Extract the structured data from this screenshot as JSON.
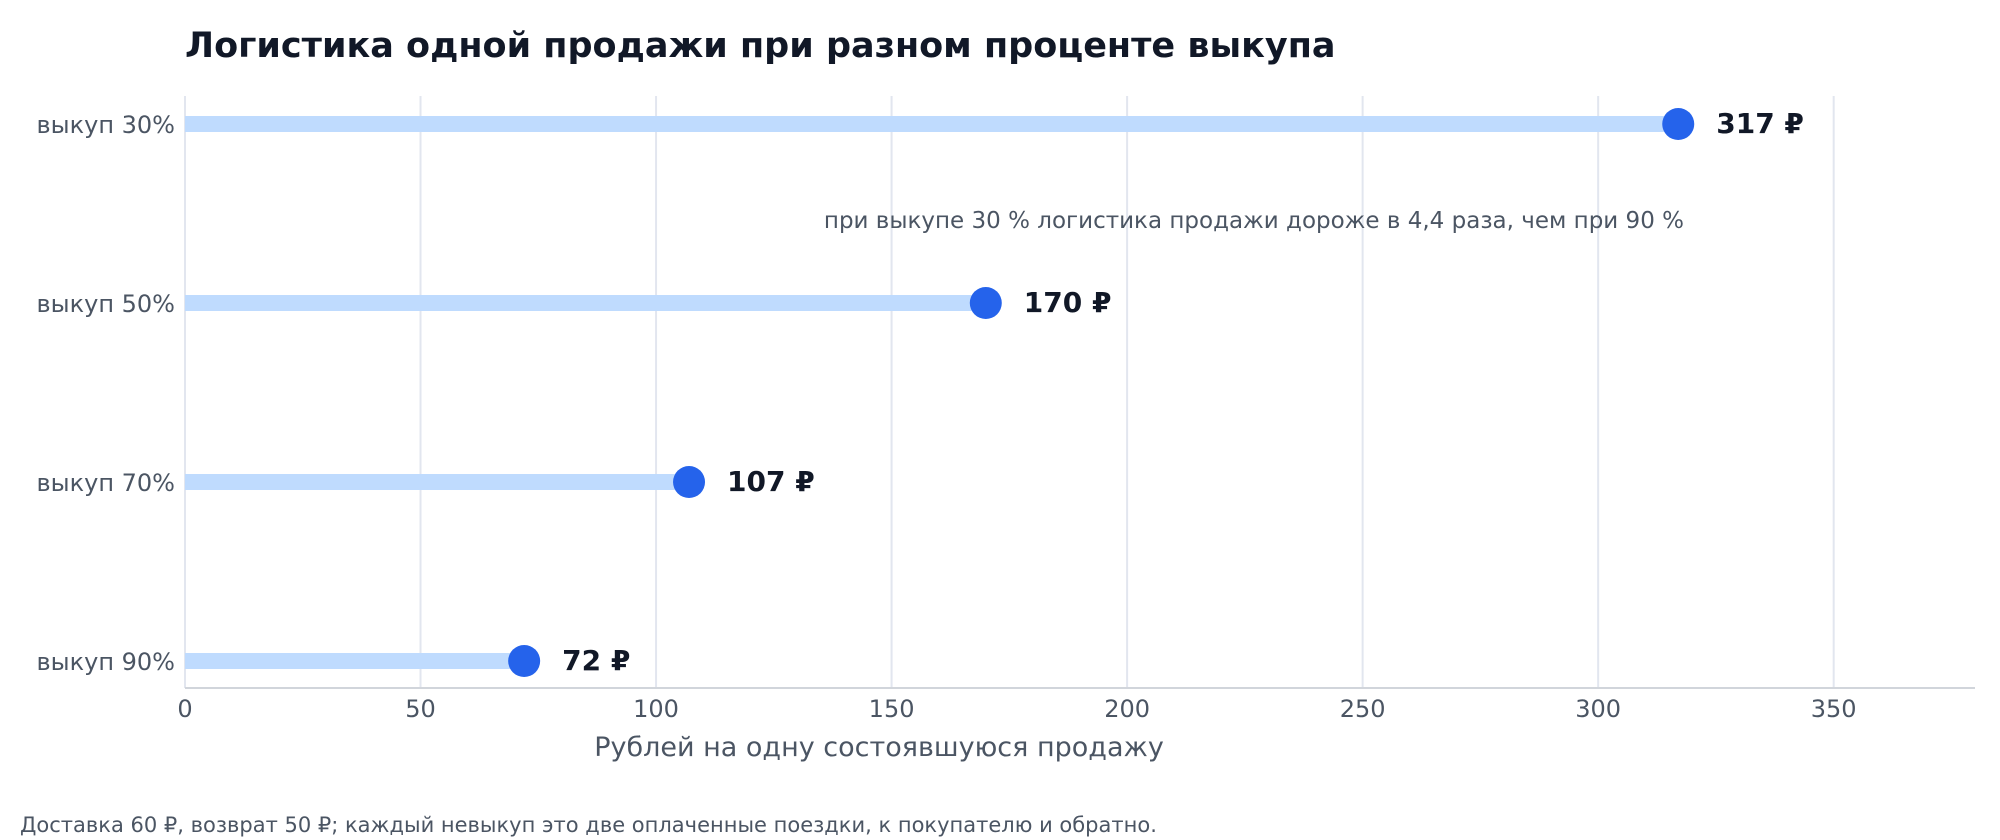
{
  "chart_data": {
    "type": "lollipop",
    "title": "Логистика одной продажи при разном проценте выкупа",
    "xlabel": "Рублей на одну состоявшуюся продажу",
    "ylabel": "",
    "xlim": [
      0,
      380
    ],
    "x_ticks": [
      0,
      50,
      100,
      150,
      200,
      250,
      300,
      350
    ],
    "x_tick_labels": [
      "0",
      "50",
      "100",
      "150",
      "200",
      "250",
      "300",
      "350"
    ],
    "categories": [
      "выкуп 30%",
      "выкуп 50%",
      "выкуп 70%",
      "выкуп 90%"
    ],
    "values": [
      317,
      170,
      107,
      72
    ],
    "value_labels": [
      "317 ₽",
      "170 ₽",
      "107 ₽",
      "72 ₽"
    ],
    "grid": "vertical",
    "annotation": "при выкупе 30 % логистика продажи дороже в 4,4 раза, чем при 90 %",
    "footnote": "Доставка 60 ₽, возврат 50 ₽; каждый невыкуп это две оплаченные поездки, к покупателю и обратно.",
    "colors": {
      "stem": "#bfdbfe",
      "dot": "#2563eb",
      "grid": "#e2e6ef",
      "axis": "#d1d5db",
      "title": "#111827",
      "muted_text": "#4b5563"
    }
  }
}
